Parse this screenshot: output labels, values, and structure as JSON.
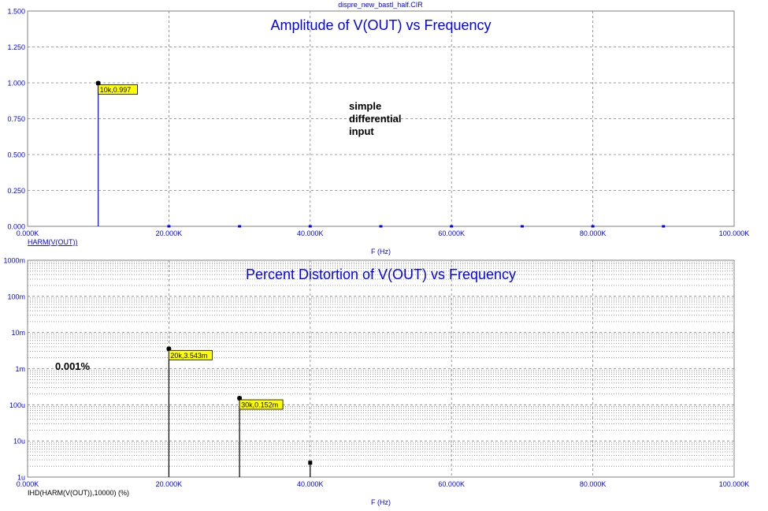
{
  "window_title": "dispre_new_bastl_half.CIR",
  "colors": {
    "amplitude": "#0000ff",
    "distortion": "#000000",
    "axis_text": "#0000ff",
    "grid": "#808080",
    "marker_bg": "#ffff00"
  },
  "annotations": {
    "note_top": [
      "simple",
      "differential",
      "input"
    ],
    "note_bottom": "0.001%"
  },
  "chart_data": [
    {
      "type": "bar",
      "title": "Amplitude of V(OUT) vs Frequency",
      "series_label": "HARM(V(OUT))",
      "xlabel": "F (Hz)",
      "ylabel": "",
      "xlim": [
        0,
        100000
      ],
      "ylim": [
        0,
        1.5
      ],
      "x_ticks": [
        0,
        20000,
        40000,
        60000,
        80000,
        100000
      ],
      "x_tick_labels": [
        "0.000K",
        "20.000K",
        "40.000K",
        "60.000K",
        "80.000K",
        "100.000K"
      ],
      "y_ticks": [
        0,
        0.25,
        0.5,
        0.75,
        1.0,
        1.25,
        1.5
      ],
      "y_tick_labels": [
        "0.000",
        "0.250",
        "0.500",
        "0.750",
        "1.000",
        "1.250",
        "1.500"
      ],
      "grid": true,
      "x": [
        10000,
        20000,
        30000,
        40000,
        50000,
        60000,
        70000,
        80000,
        90000
      ],
      "values": [
        0.997,
        0,
        0,
        0,
        0,
        0,
        0,
        0,
        0
      ],
      "markers": [
        {
          "x": 10000,
          "y": 0.997,
          "label": "10k,0.997"
        }
      ]
    },
    {
      "type": "bar",
      "title": "Percent Distortion of V(OUT) vs Frequency",
      "series_label": "IHD(HARM(V(OUT)),10000) (%)",
      "xlabel": "F (Hz)",
      "ylabel": "",
      "yscale": "log",
      "xlim": [
        0,
        100000
      ],
      "ylim": [
        1e-06,
        1
      ],
      "x_ticks": [
        0,
        20000,
        40000,
        60000,
        80000,
        100000
      ],
      "x_tick_labels": [
        "0.000K",
        "20.000K",
        "40.000K",
        "60.000K",
        "80.000K",
        "100.000K"
      ],
      "y_ticks": [
        1e-06,
        1e-05,
        0.0001,
        0.001,
        0.01,
        0.1,
        1
      ],
      "y_tick_labels": [
        "1u",
        "10u",
        "100u",
        "1m",
        "10m",
        "100m",
        "1000m"
      ],
      "grid": true,
      "x": [
        20000,
        30000,
        40000
      ],
      "values": [
        0.003543,
        0.000152,
        2.5e-06
      ],
      "markers": [
        {
          "x": 20000,
          "y": 0.003543,
          "label": "20k,3.543m"
        },
        {
          "x": 30000,
          "y": 0.000152,
          "label": "30k,0.152m"
        }
      ]
    }
  ]
}
